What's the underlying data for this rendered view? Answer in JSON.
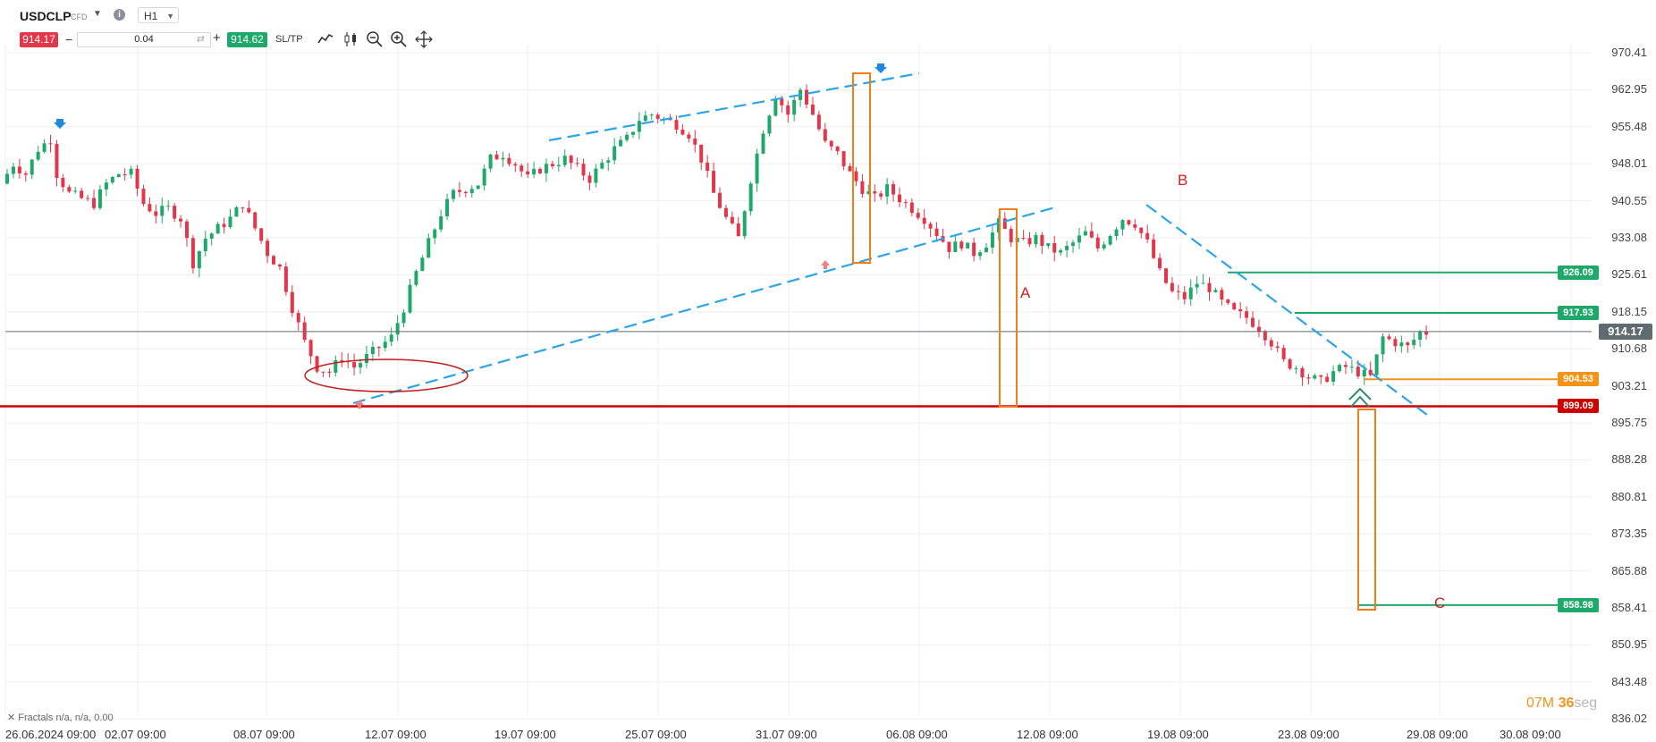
{
  "toolbar": {
    "symbol": "USDCLP",
    "instrument_type": "CFD",
    "timeframe": "H1",
    "sell_price": "914.17",
    "volume": "0.04",
    "buy_price": "914.62",
    "sltp_label": "SL/TP",
    "icons": [
      "chart-line-icon",
      "candlestick-icon",
      "zoom-out-icon",
      "zoom-in-icon",
      "crosshair-icon"
    ]
  },
  "colors": {
    "bull_candle": "#1ea96a",
    "bear_candle": "#e2364a",
    "trend_line": "#2aa5e8",
    "box": "#f07d1a",
    "support_line": "#cc0000",
    "target_line": "#1ea96a",
    "level_orange": "#f39318"
  },
  "chart_data": {
    "type": "candlestick",
    "symbol": "USDCLP",
    "timeframe": "H1",
    "y_ticks": [
      "970.41",
      "962.95",
      "955.48",
      "948.01",
      "940.55",
      "933.08",
      "925.61",
      "918.15",
      "910.68",
      "903.21",
      "895.75",
      "888.28",
      "880.81",
      "873.35",
      "865.88",
      "858.41",
      "850.95",
      "843.48",
      "836.02"
    ],
    "x_ticks": [
      "26.06.2024 09:00",
      "02.07 09:00",
      "08.07 09:00",
      "12.07 09:00",
      "19.07 09:00",
      "25.07 09:00",
      "31.07 09:00",
      "06.08 09:00",
      "12.08 09:00",
      "19.08 09:00",
      "23.08 09:00",
      "29.08 09:00",
      "30.08 09:00"
    ],
    "ylim": [
      836.02,
      974.0
    ],
    "current_price": "914.17",
    "price_path": [
      [
        0,
        944
      ],
      [
        2,
        948
      ],
      [
        4,
        946
      ],
      [
        6,
        951
      ],
      [
        8,
        953
      ],
      [
        9,
        946
      ],
      [
        11,
        942
      ],
      [
        13,
        941
      ],
      [
        15,
        940
      ],
      [
        17,
        944
      ],
      [
        19,
        946
      ],
      [
        21,
        946
      ],
      [
        23,
        940
      ],
      [
        25,
        938
      ],
      [
        27,
        939
      ],
      [
        29,
        937
      ],
      [
        31,
        928
      ],
      [
        33,
        933
      ],
      [
        35,
        935
      ],
      [
        37,
        937
      ],
      [
        39,
        940
      ],
      [
        41,
        935
      ],
      [
        43,
        930
      ],
      [
        45,
        927
      ],
      [
        47,
        919
      ],
      [
        49,
        912
      ],
      [
        51,
        907
      ],
      [
        53,
        906
      ],
      [
        55,
        909
      ],
      [
        57,
        907
      ],
      [
        59,
        909
      ],
      [
        61,
        911
      ],
      [
        63,
        913
      ],
      [
        65,
        919
      ],
      [
        67,
        926
      ],
      [
        69,
        932
      ],
      [
        71,
        938
      ],
      [
        73,
        942
      ],
      [
        75,
        943
      ],
      [
        77,
        944
      ],
      [
        79,
        949
      ],
      [
        81,
        950
      ],
      [
        83,
        948
      ],
      [
        85,
        945
      ],
      [
        87,
        947
      ],
      [
        89,
        948
      ],
      [
        91,
        949
      ],
      [
        93,
        947
      ],
      [
        95,
        945
      ],
      [
        97,
        948
      ],
      [
        99,
        951
      ],
      [
        101,
        953
      ],
      [
        103,
        957
      ],
      [
        105,
        958
      ],
      [
        107,
        957
      ],
      [
        109,
        956
      ],
      [
        111,
        954
      ],
      [
        113,
        949
      ],
      [
        115,
        942
      ],
      [
        117,
        937
      ],
      [
        119,
        933
      ],
      [
        121,
        945
      ],
      [
        123,
        955
      ],
      [
        125,
        962
      ],
      [
        127,
        958
      ],
      [
        129,
        963
      ],
      [
        131,
        958
      ],
      [
        133,
        952
      ],
      [
        135,
        950
      ],
      [
        137,
        946
      ],
      [
        139,
        943
      ],
      [
        141,
        941
      ],
      [
        143,
        943
      ],
      [
        145,
        941
      ],
      [
        147,
        939
      ],
      [
        149,
        937
      ],
      [
        151,
        934
      ],
      [
        153,
        931
      ],
      [
        155,
        932
      ],
      [
        157,
        930
      ],
      [
        159,
        932
      ],
      [
        161,
        936
      ],
      [
        163,
        933
      ],
      [
        165,
        932
      ],
      [
        167,
        933
      ],
      [
        169,
        931
      ],
      [
        171,
        930
      ],
      [
        173,
        932
      ],
      [
        175,
        934
      ],
      [
        177,
        931
      ],
      [
        179,
        934
      ],
      [
        181,
        937
      ],
      [
        183,
        936
      ],
      [
        185,
        932
      ],
      [
        187,
        926
      ],
      [
        189,
        922
      ],
      [
        191,
        921
      ],
      [
        193,
        924
      ],
      [
        195,
        923
      ],
      [
        197,
        920
      ],
      [
        199,
        918
      ],
      [
        201,
        917
      ],
      [
        203,
        915
      ],
      [
        205,
        912
      ],
      [
        207,
        908
      ],
      [
        209,
        907
      ],
      [
        211,
        905
      ],
      [
        213,
        904
      ],
      [
        215,
        906
      ],
      [
        217,
        907
      ],
      [
        219,
        906
      ],
      [
        221,
        905
      ],
      [
        223,
        913
      ],
      [
        225,
        912
      ],
      [
        227,
        911
      ],
      [
        229,
        914
      ]
    ],
    "levels": [
      {
        "label": "926.09",
        "price": 926.09,
        "color": "#1ea96a"
      },
      {
        "label": "917.93",
        "price": 917.93,
        "color": "#1ea96a"
      },
      {
        "label": "904.53",
        "price": 904.53,
        "color": "#f39318"
      },
      {
        "label": "899.09",
        "price": 899.09,
        "color": "#cc0000"
      },
      {
        "label": "858.98",
        "price": 858.98,
        "color": "#1ea96a"
      }
    ],
    "wave_labels": [
      "A",
      "B",
      "C"
    ],
    "indicator": "Fractals n/a, n/a, 0.00",
    "timer": {
      "minutes": "07M",
      "seconds": "36",
      "seconds_suffix": "seg"
    }
  }
}
